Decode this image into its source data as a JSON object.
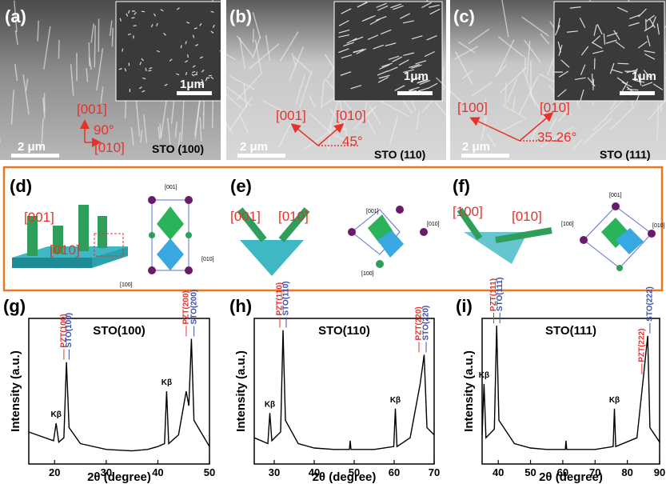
{
  "sem": [
    {
      "label": "(a)",
      "inset_scale": "1μm",
      "scale": "2 μm",
      "dir1": "[001]",
      "angle": "90°",
      "dir2": "[010]",
      "substrate": "STO (100)"
    },
    {
      "label": "(b)",
      "inset_scale": "1μm",
      "scale": "2 μm",
      "dir1": "[001]",
      "dir2": "[010]",
      "angle": "45°",
      "substrate": "STO (110)"
    },
    {
      "label": "(c)",
      "inset_scale": "1μm",
      "scale": "2 μm",
      "dir1": "[100]",
      "dir2": "[010]",
      "angle": "35.26°",
      "substrate": "STO (111)"
    }
  ],
  "schematic": [
    {
      "label": "(d)",
      "dir1": "[001]",
      "dir2": "[010]",
      "cell_axes": [
        "[001]",
        "[010]",
        "[100]"
      ]
    },
    {
      "label": "(e)",
      "dir1": "[001]",
      "dir2": "[010]",
      "cell_axes": [
        "[001]",
        "[010]",
        "[100]"
      ]
    },
    {
      "label": "(f)",
      "dir1": "[100]",
      "dir2": "[010]",
      "cell_axes": [
        "[001]",
        "[010]",
        "[100]"
      ]
    }
  ],
  "chart_data": [
    {
      "type": "line",
      "panel": "(g)",
      "title": "STO(100)",
      "x_label": "2θ (degree)",
      "y_label": "Intensity (a.u.)",
      "xlim": [
        15,
        50
      ],
      "xticks": [
        20,
        30,
        40,
        50
      ],
      "ylim": [
        0,
        100
      ],
      "color": "#000000",
      "x": [
        15,
        19.8,
        20.3,
        20.8,
        21.8,
        22.3,
        22.8,
        25,
        30,
        35,
        38,
        40,
        41.3,
        41.7,
        42.1,
        44,
        45.5,
        46,
        46.5,
        47,
        50
      ],
      "values": [
        22,
        16,
        28,
        15,
        18,
        70,
        25,
        14,
        10,
        9,
        10,
        12,
        14,
        50,
        14,
        20,
        50,
        40,
        86,
        30,
        12
      ],
      "annotations": [
        {
          "text": "Kβ",
          "x": 20.3,
          "color": "#000000"
        },
        {
          "text": "PZT(100)",
          "x": 21.8,
          "color": "#e8312b"
        },
        {
          "text": "STO(100)",
          "x": 22.8,
          "color": "#3a4fb0"
        },
        {
          "text": "Kβ",
          "x": 41.7,
          "color": "#000000"
        },
        {
          "text": "PZT(200)",
          "x": 45.5,
          "color": "#e8312b"
        },
        {
          "text": "STO(200)",
          "x": 47,
          "color": "#3a4fb0"
        }
      ]
    },
    {
      "type": "line",
      "panel": "(h)",
      "title": "STO(110)",
      "x_label": "2θ (degree)",
      "y_label": "Intensity (a.u.)",
      "xlim": [
        25,
        70
      ],
      "xticks": [
        30,
        40,
        50,
        60,
        70
      ],
      "ylim": [
        0,
        100
      ],
      "color": "#000000",
      "x": [
        25,
        28.4,
        28.9,
        29.4,
        31.6,
        32.2,
        32.8,
        36,
        40,
        45,
        48.8,
        49,
        49.2,
        55,
        59.9,
        60.3,
        60.7,
        64,
        66.5,
        67.5,
        68.2,
        70
      ],
      "values": [
        18,
        14,
        35,
        16,
        22,
        92,
        30,
        14,
        11,
        10,
        10,
        16,
        10,
        10,
        12,
        38,
        12,
        18,
        55,
        75,
        25,
        20
      ],
      "annotations": [
        {
          "text": "Kβ",
          "x": 28.9,
          "color": "#000000"
        },
        {
          "text": "PZT(110)",
          "x": 31.4,
          "color": "#e8312b"
        },
        {
          "text": "STO(110)",
          "x": 33,
          "color": "#3a4fb0"
        },
        {
          "text": "Kβ",
          "x": 60.3,
          "color": "#000000"
        },
        {
          "text": "PZT(220)",
          "x": 66.2,
          "color": "#e8312b"
        },
        {
          "text": "STO(220)",
          "x": 68,
          "color": "#3a4fb0"
        }
      ]
    },
    {
      "type": "line",
      "panel": "(i)",
      "title": "STO(111)",
      "x_label": "2θ (degree)",
      "y_label": "Intensity (a.u.)",
      "xlim": [
        35,
        90
      ],
      "xticks": [
        40,
        50,
        60,
        70,
        80,
        90
      ],
      "ylim": [
        0,
        100
      ],
      "color": "#000000",
      "x": [
        35,
        35.6,
        36.2,
        38.8,
        39.5,
        40.2,
        45,
        50,
        55,
        60.8,
        61,
        61.2,
        70,
        75.6,
        76,
        76.4,
        83,
        85,
        86.3,
        87,
        90
      ],
      "values": [
        20,
        55,
        18,
        24,
        95,
        30,
        14,
        11,
        10,
        10,
        16,
        10,
        10,
        12,
        38,
        12,
        18,
        60,
        88,
        25,
        15
      ],
      "annotations": [
        {
          "text": "Kβ",
          "x": 35.6,
          "color": "#000000"
        },
        {
          "text": "PZT(111)",
          "x": 38.6,
          "color": "#e8312b"
        },
        {
          "text": "STO(111)",
          "x": 40.5,
          "color": "#3a4fb0"
        },
        {
          "text": "Kβ",
          "x": 76,
          "color": "#000000"
        },
        {
          "text": "PZT(222)",
          "x": 84.5,
          "color": "#e8312b"
        },
        {
          "text": "STO(222)",
          "x": 87,
          "color": "#3a4fb0"
        }
      ]
    }
  ]
}
